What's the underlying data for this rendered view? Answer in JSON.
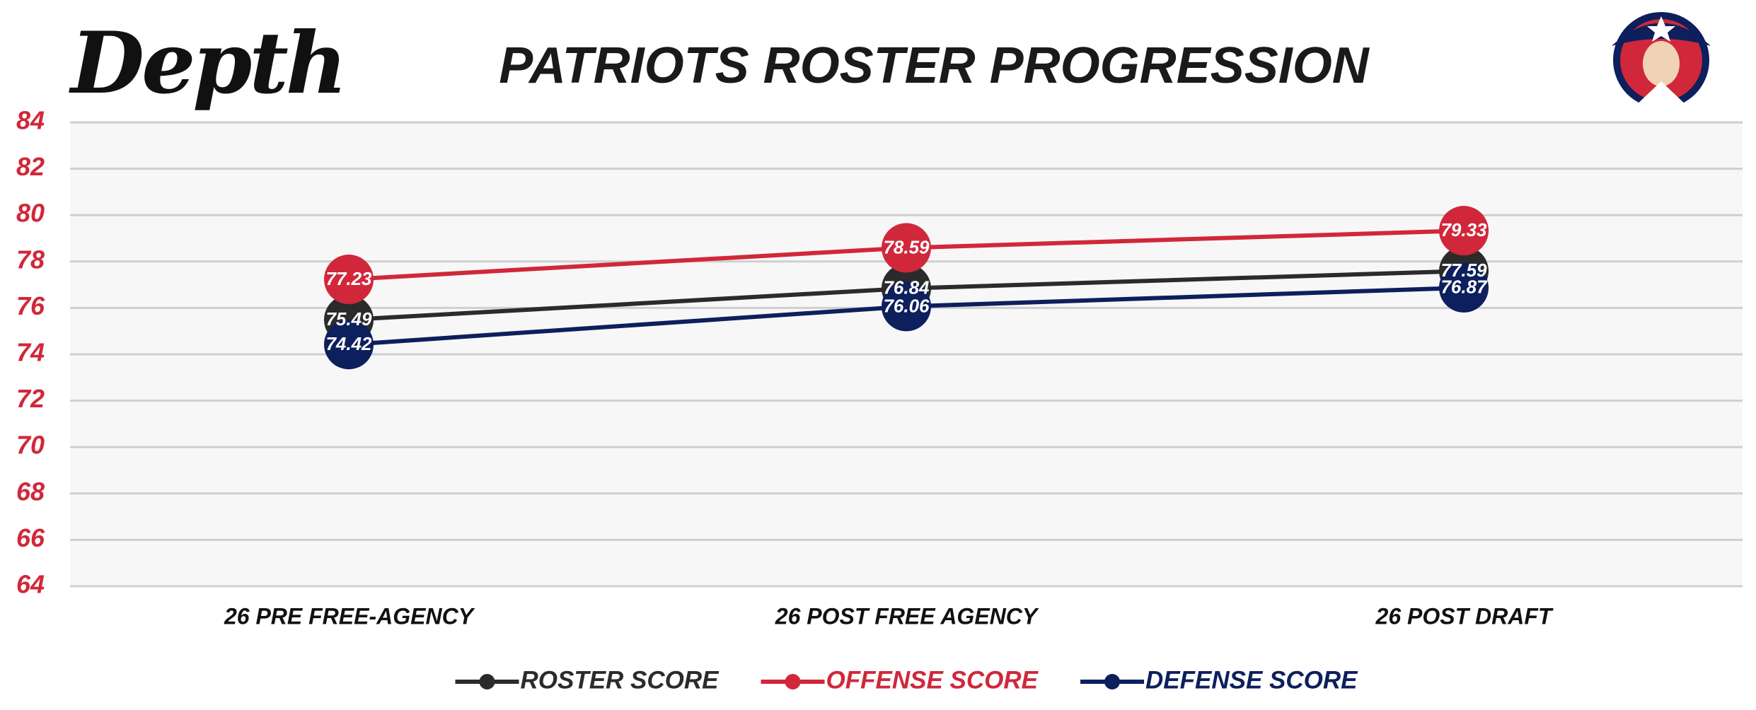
{
  "logo": "Depth",
  "chart_data": {
    "type": "line",
    "title": "PATRIOTS ROSTER PROGRESSION",
    "categories": [
      "26 PRE FREE-AGENCY",
      "26 POST FREE AGENCY",
      "26 POST DRAFT"
    ],
    "series": [
      {
        "name": "ROSTER SCORE",
        "color": "#2b2b2b",
        "values": [
          75.49,
          76.84,
          77.59
        ]
      },
      {
        "name": "OFFENSE SCORE",
        "color": "#d0283a",
        "values": [
          77.23,
          78.59,
          79.33
        ]
      },
      {
        "name": "DEFENSE SCORE",
        "color": "#0d1f5c",
        "values": [
          74.42,
          76.06,
          76.87
        ]
      }
    ],
    "ylim": [
      64,
      84
    ],
    "yticks": [
      64,
      66,
      68,
      70,
      72,
      74,
      76,
      78,
      80,
      82,
      84
    ],
    "grid": true,
    "legend": "bottom"
  }
}
